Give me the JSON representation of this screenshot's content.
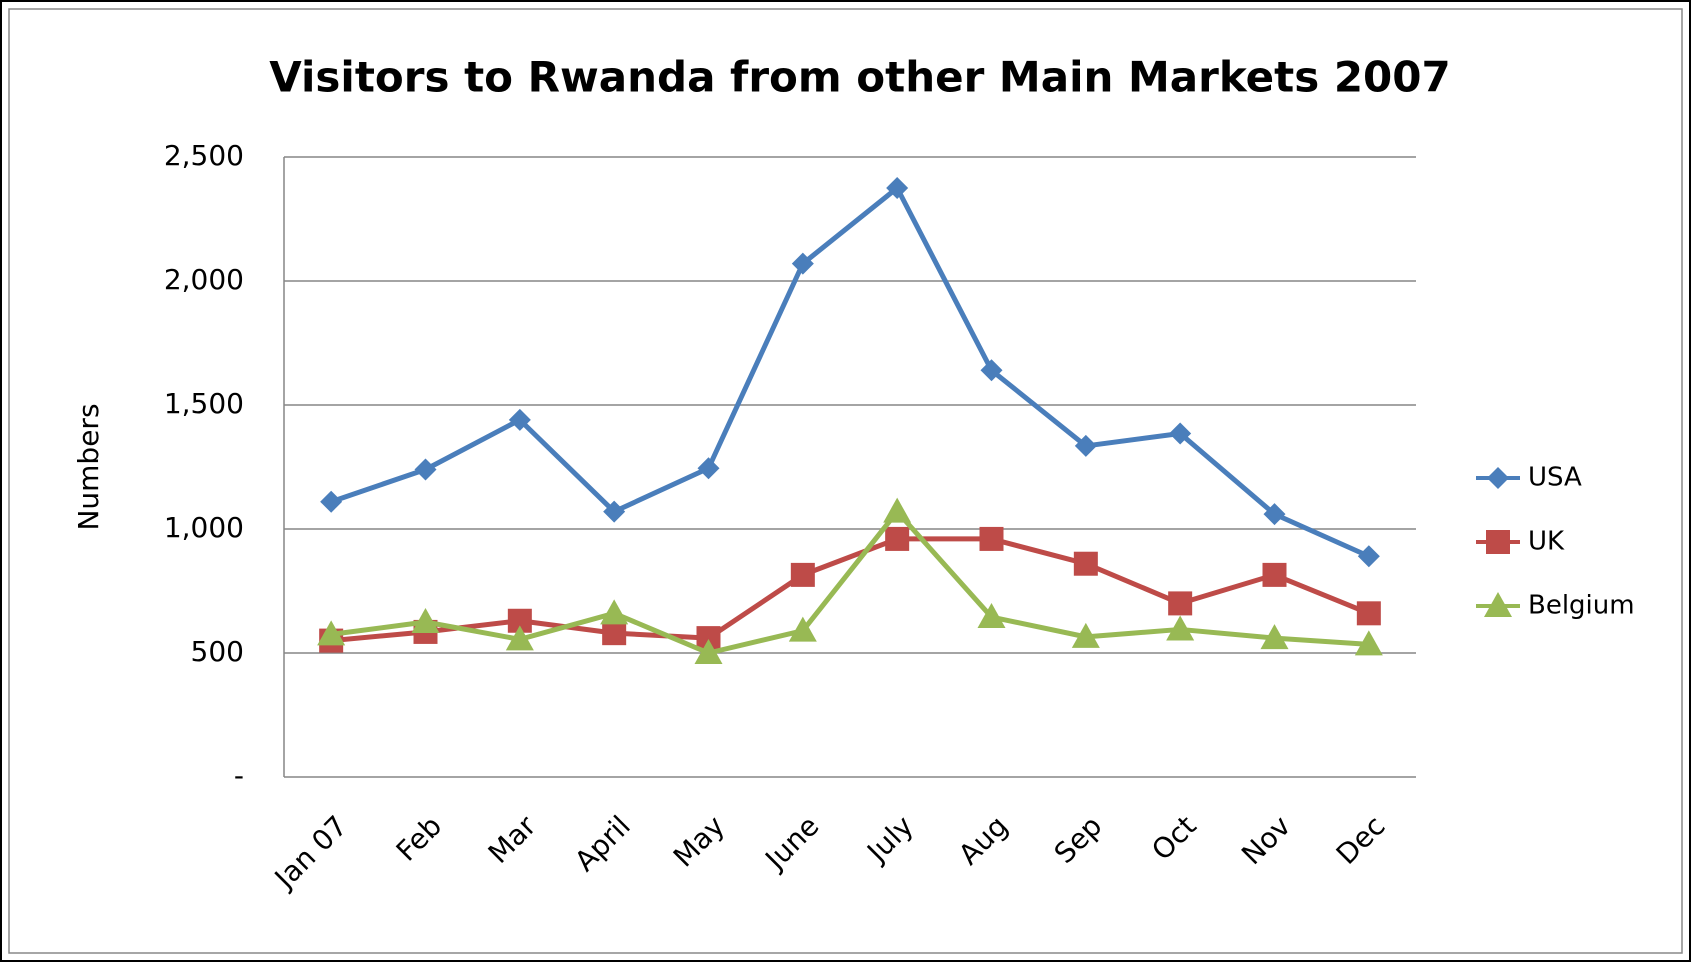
{
  "chart_data": {
    "type": "line",
    "title": "Visitors to Rwanda from other Main Markets 2007",
    "y_label": "Numbers",
    "categories": [
      "Jan 07",
      "Feb",
      "Mar",
      "April",
      "May",
      "June",
      "July",
      "Aug",
      "Sep",
      "Oct",
      "Nov",
      "Dec"
    ],
    "series": [
      {
        "name": "USA",
        "color": "#4a7ebb",
        "marker": "diamond",
        "values": [
          1110,
          1240,
          1440,
          1070,
          1245,
          2070,
          2375,
          1640,
          1335,
          1385,
          1060,
          890
        ]
      },
      {
        "name": "UK",
        "color": "#be4b48",
        "marker": "square",
        "values": [
          550,
          585,
          630,
          580,
          560,
          815,
          960,
          960,
          860,
          700,
          815,
          660
        ]
      },
      {
        "name": "Belgium",
        "color": "#98b954",
        "marker": "triangle",
        "values": [
          575,
          625,
          555,
          660,
          500,
          590,
          1070,
          645,
          565,
          595,
          560,
          535
        ]
      }
    ],
    "ylim": [
      0,
      2500
    ],
    "yticks": [
      {
        "value": 0,
        "label": "-"
      },
      500,
      {
        "value": 1000,
        "label": "1,000"
      },
      {
        "value": 1500,
        "label": "1,500"
      },
      {
        "value": 2000,
        "label": "2,000"
      },
      {
        "value": 2500,
        "label": "2,500"
      }
    ],
    "grid": true,
    "legend": "right"
  }
}
